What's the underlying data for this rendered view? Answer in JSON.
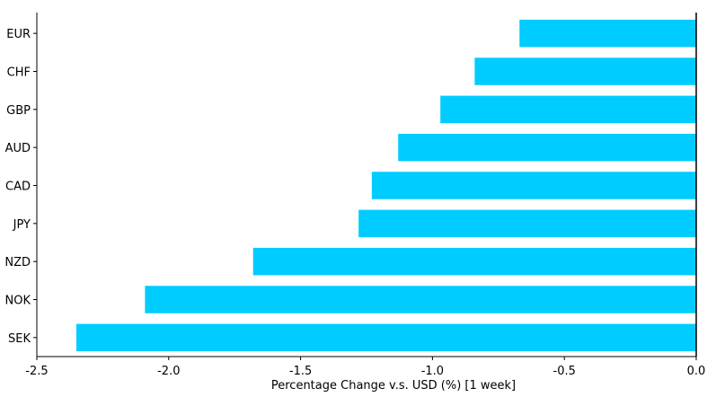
{
  "chart_data": {
    "type": "bar",
    "orientation": "horizontal",
    "categories": [
      "EUR",
      "CHF",
      "GBP",
      "AUD",
      "CAD",
      "JPY",
      "NZD",
      "NOK",
      "SEK"
    ],
    "values": [
      -0.67,
      -0.84,
      -0.97,
      -1.13,
      -1.23,
      -1.28,
      -1.68,
      -2.09,
      -2.35
    ],
    "title": "",
    "xlabel": "Percentage Change v.s. USD (%) [1 week]",
    "ylabel": "",
    "xlim": [
      -2.5,
      0.0
    ],
    "xticks": [
      "-2.5",
      "-2.0",
      "-1.5",
      "-1.0",
      "-0.5",
      "0.0"
    ],
    "grid": false,
    "legend": "none",
    "bar_color": "#00ccff"
  }
}
